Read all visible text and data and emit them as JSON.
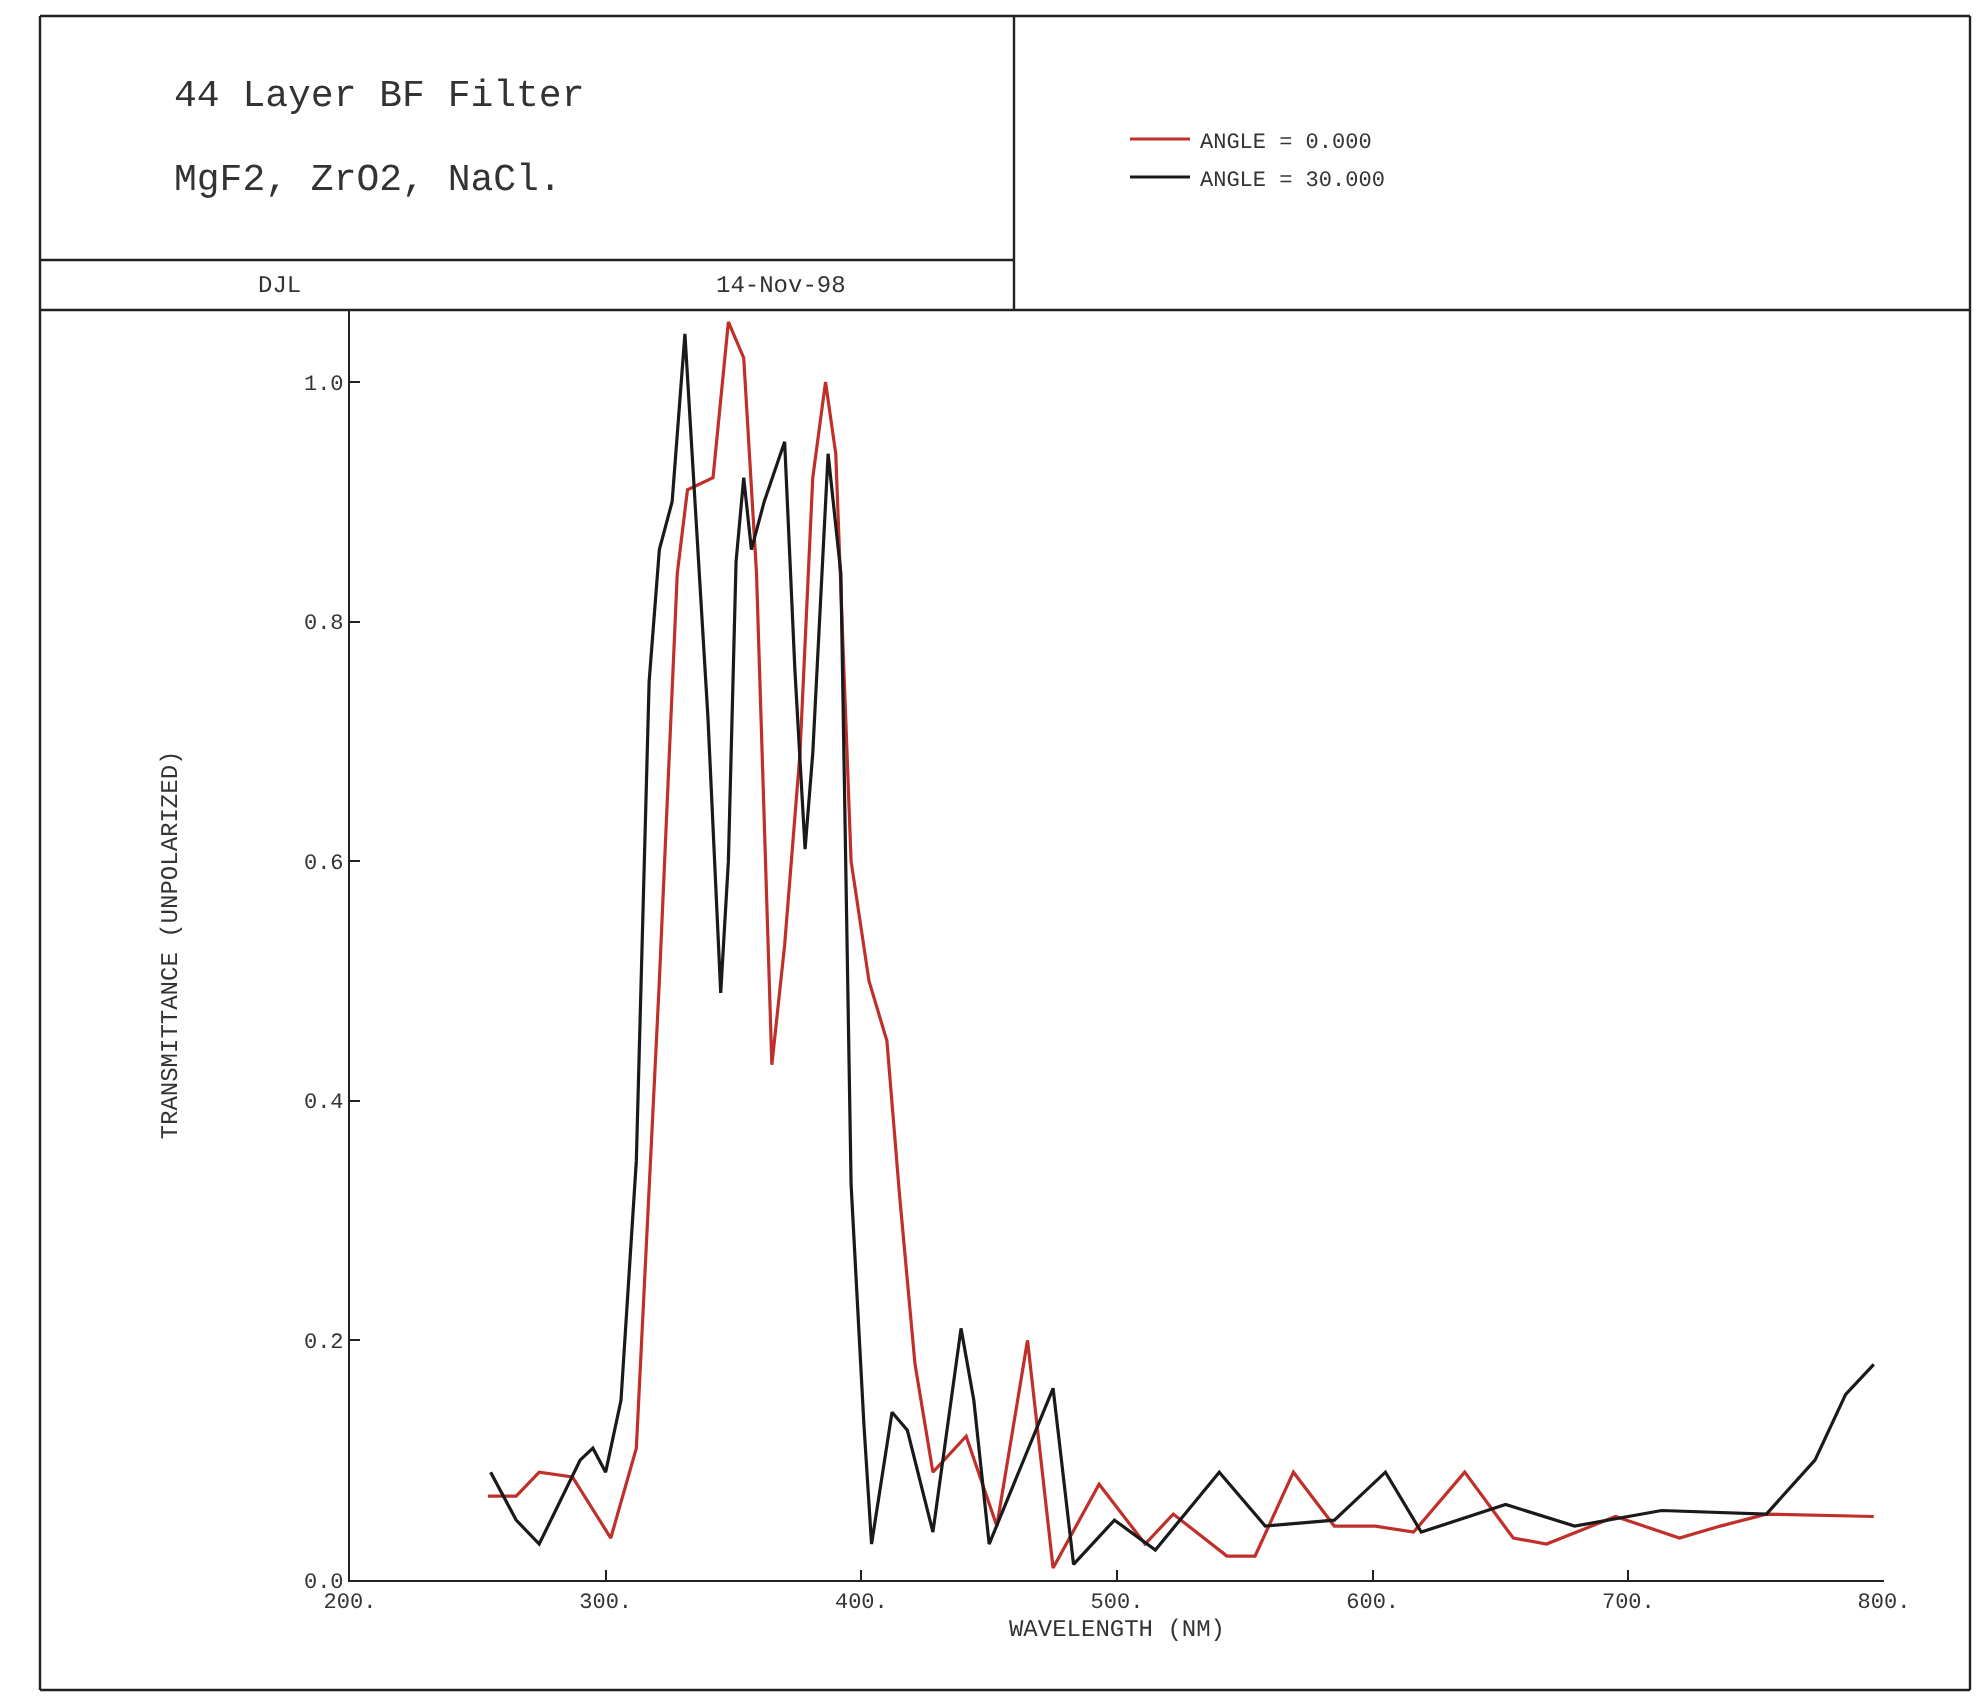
{
  "chart_data": {
    "type": "line",
    "title": "44 Layer BF Filter",
    "subtitle": "MgF2, ZrO2, NaCl.",
    "annotations": [
      "DJL",
      "14-Nov-98"
    ],
    "xlabel": "WAVELENGTH (NM)",
    "ylabel": "TRANSMITTANCE (UNPOLARIZED)",
    "xlim": [
      200,
      800
    ],
    "ylim": [
      0,
      1.06
    ],
    "xticks": [
      {
        "value": 200,
        "label": "200."
      },
      {
        "value": 300,
        "label": "300."
      },
      {
        "value": 400,
        "label": "400."
      },
      {
        "value": 500,
        "label": "500."
      },
      {
        "value": 600,
        "label": "600."
      },
      {
        "value": 700,
        "label": "700."
      },
      {
        "value": 800,
        "label": "800."
      }
    ],
    "yticks": [
      {
        "value": 0,
        "label": "0.0"
      },
      {
        "value": 0.2,
        "label": "0.2"
      },
      {
        "value": 0.4,
        "label": "0.4"
      },
      {
        "value": 0.6,
        "label": "0.6"
      },
      {
        "value": 0.8,
        "label": "0.8"
      },
      {
        "value": 1,
        "label": "1.0"
      }
    ],
    "legend": "top right",
    "marker": "none",
    "line_style": "solid",
    "series": [
      {
        "name": "ANGLE = 0.000",
        "color": "#c0302a",
        "x": [
          254,
          265,
          274,
          287,
          302,
          312,
          321,
          328,
          332,
          342,
          348,
          354,
          359,
          365,
          370,
          376,
          381,
          386,
          390,
          396,
          403,
          410,
          415,
          421,
          428,
          441,
          453,
          465,
          475,
          493,
          511,
          522,
          543,
          554,
          569,
          585,
          601,
          616,
          636,
          655,
          668,
          695,
          720,
          736,
          754,
          796
        ],
        "values": [
          0.07,
          0.07,
          0.09,
          0.086,
          0.035,
          0.11,
          0.5,
          0.84,
          0.91,
          0.92,
          1.05,
          1.02,
          0.84,
          0.43,
          0.53,
          0.69,
          0.92,
          1.0,
          0.94,
          0.6,
          0.5,
          0.45,
          0.32,
          0.18,
          0.09,
          0.12,
          0.045,
          0.2,
          0.01,
          0.08,
          0.03,
          0.055,
          0.02,
          0.02,
          0.09,
          0.045,
          0.045,
          0.04,
          0.09,
          0.035,
          0.03,
          0.053,
          0.035,
          0.045,
          0.055,
          0.053
        ]
      },
      {
        "name": "ANGLE = 30.000",
        "color": "#1a1a1a",
        "x": [
          255,
          265,
          274,
          290,
          295,
          300,
          306,
          312,
          317,
          321,
          326,
          331,
          340,
          345,
          348,
          351,
          354,
          357,
          362,
          370,
          374,
          378,
          381,
          387,
          392,
          396,
          401,
          404,
          412,
          418,
          428,
          439,
          444,
          450,
          475,
          483,
          499,
          515,
          540,
          558,
          585,
          605,
          619,
          652,
          679,
          713,
          754,
          773,
          785,
          796
        ],
        "values": [
          0.09,
          0.05,
          0.03,
          0.1,
          0.11,
          0.09,
          0.15,
          0.35,
          0.75,
          0.86,
          0.9,
          1.04,
          0.72,
          0.49,
          0.6,
          0.85,
          0.92,
          0.86,
          0.9,
          0.95,
          0.76,
          0.61,
          0.69,
          0.94,
          0.84,
          0.33,
          0.13,
          0.03,
          0.14,
          0.125,
          0.04,
          0.21,
          0.15,
          0.03,
          0.16,
          0.013,
          0.05,
          0.025,
          0.09,
          0.045,
          0.05,
          0.09,
          0.04,
          0.063,
          0.045,
          0.058,
          0.055,
          0.1,
          0.155,
          0.18
        ]
      }
    ]
  }
}
